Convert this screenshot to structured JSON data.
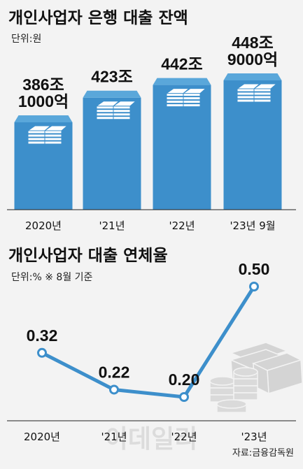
{
  "chart_data": [
    {
      "type": "bar",
      "title": "개인사업자 은행 대출 잔액",
      "unit_label": "단위:원",
      "categories": [
        "2020년",
        "'21년",
        "'22년",
        "'23년 9월"
      ],
      "values": [
        386.1,
        423,
        442,
        448.9
      ],
      "value_labels": [
        [
          "386조",
          "1000억"
        ],
        [
          "423조"
        ],
        [
          "442조"
        ],
        [
          "448조",
          "9000억"
        ]
      ],
      "color": "#3d8fcb"
    },
    {
      "type": "line",
      "title": "개인사업자 대출 연체율",
      "unit_label": "단위:% ※ 8월 기준",
      "categories": [
        "2020년",
        "'21년",
        "'22년",
        "'23년"
      ],
      "values": [
        0.32,
        0.22,
        0.2,
        0.5
      ],
      "value_labels": [
        "0.32",
        "0.22",
        "0.20",
        "0.50"
      ],
      "color": "#3d8fcb"
    }
  ],
  "source": "자료:금융감독원",
  "watermark": "이데일리"
}
